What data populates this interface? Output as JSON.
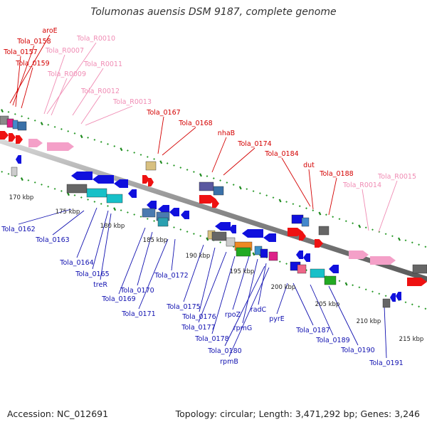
{
  "title": "Tolumonas auensis DSM 9187, complete genome",
  "footer": {
    "accession": "Accession: NC_012691",
    "summary": "Topology: circular; Length: 3,471,292 bp; Genes: 3,246"
  },
  "colors": {
    "top_label": "#d40000",
    "rna_label": "#f08cb4",
    "bottom_label": "#1010b0",
    "backbone": "#888888"
  },
  "kbp_ticks": [
    "170 kbp",
    "175 kbp",
    "180 kbp",
    "185 kbp",
    "190 kbp",
    "195 kbp",
    "200 kbp",
    "205 kbp",
    "210 kbp",
    "215 kbp"
  ],
  "top_labels": [
    {
      "text": "aroE",
      "kind": "gene"
    },
    {
      "text": "Tola_0158",
      "kind": "gene"
    },
    {
      "text": "Tola_0157",
      "kind": "gene"
    },
    {
      "text": "Tola_0159",
      "kind": "gene"
    },
    {
      "text": "Tola_R0010",
      "kind": "rna"
    },
    {
      "text": "Tola_R0007",
      "kind": "rna"
    },
    {
      "text": "Tola_R0011",
      "kind": "rna"
    },
    {
      "text": "Tola_R0009",
      "kind": "rna"
    },
    {
      "text": "Tola_R0012",
      "kind": "rna"
    },
    {
      "text": "Tola_R0013",
      "kind": "rna"
    },
    {
      "text": "Tola_0167",
      "kind": "gene"
    },
    {
      "text": "Tola_0168",
      "kind": "gene"
    },
    {
      "text": "nhaB",
      "kind": "gene"
    },
    {
      "text": "Tola_0174",
      "kind": "gene"
    },
    {
      "text": "Tola_0184",
      "kind": "gene"
    },
    {
      "text": "dut",
      "kind": "gene"
    },
    {
      "text": "Tola_0188",
      "kind": "gene"
    },
    {
      "text": "Tola_R0015",
      "kind": "rna"
    },
    {
      "text": "Tola_R0014",
      "kind": "rna"
    }
  ],
  "bottom_labels": [
    "Tola_0162",
    "Tola_0163",
    "Tola_0164",
    "Tola_0165",
    "treR",
    "Tola_0170",
    "Tola_0169",
    "Tola_0172",
    "Tola_0171",
    "Tola_0175",
    "Tola_0176",
    "Tola_0177",
    "Tola_0178",
    "rpoZ",
    "rpmG",
    "radC",
    "Tola_0180",
    "rpmB",
    "pyrE",
    "Tola_0187",
    "Tola_0189",
    "Tola_0190",
    "Tola_0191"
  ]
}
